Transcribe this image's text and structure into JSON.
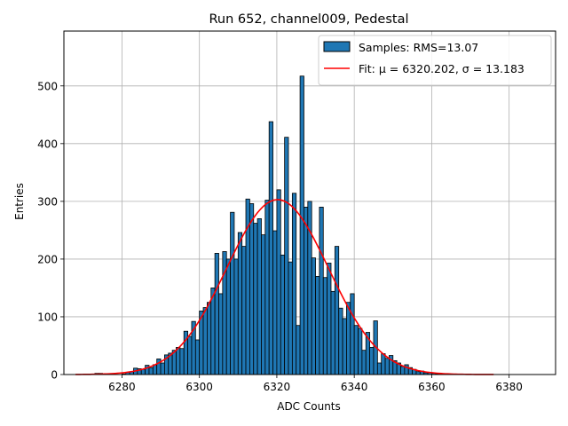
{
  "chart_data": {
    "type": "bar",
    "title": "Run 652, channel009, Pedestal",
    "xlabel": "ADC Counts",
    "ylabel": "Entries",
    "xlim": [
      6265,
      6392
    ],
    "ylim": [
      0,
      595
    ],
    "xticks": [
      6280,
      6300,
      6320,
      6340,
      6360,
      6380
    ],
    "yticks": [
      0,
      100,
      200,
      300,
      400,
      500
    ],
    "grid": true,
    "legend_position": "top-right",
    "legend": {
      "samples_label": "Samples: RMS=13.07",
      "fit_label": "Fit: μ = 6320.202, σ = 13.183"
    },
    "histogram": {
      "name": "Samples: RMS=13.07",
      "color": "#1f77b4",
      "edge_color": "#000000",
      "bin_width": 1,
      "bins": [
        [
          6273,
          2
        ],
        [
          6274,
          2
        ],
        [
          6280,
          1
        ],
        [
          6281,
          4
        ],
        [
          6282,
          5
        ],
        [
          6283,
          11
        ],
        [
          6284,
          10
        ],
        [
          6285,
          9
        ],
        [
          6286,
          16
        ],
        [
          6287,
          12
        ],
        [
          6288,
          17
        ],
        [
          6289,
          27
        ],
        [
          6290,
          20
        ],
        [
          6291,
          34
        ],
        [
          6292,
          37
        ],
        [
          6293,
          42
        ],
        [
          6294,
          47
        ],
        [
          6295,
          45
        ],
        [
          6296,
          75
        ],
        [
          6297,
          66
        ],
        [
          6298,
          92
        ],
        [
          6299,
          60
        ],
        [
          6300,
          110
        ],
        [
          6301,
          116
        ],
        [
          6302,
          125
        ],
        [
          6303,
          150
        ],
        [
          6304,
          210
        ],
        [
          6305,
          140
        ],
        [
          6306,
          213
        ],
        [
          6307,
          200
        ],
        [
          6308,
          281
        ],
        [
          6309,
          200
        ],
        [
          6310,
          246
        ],
        [
          6311,
          222
        ],
        [
          6312,
          304
        ],
        [
          6313,
          296
        ],
        [
          6314,
          262
        ],
        [
          6315,
          270
        ],
        [
          6316,
          242
        ],
        [
          6317,
          302
        ],
        [
          6318,
          438
        ],
        [
          6319,
          249
        ],
        [
          6320,
          320
        ],
        [
          6321,
          207
        ],
        [
          6322,
          411
        ],
        [
          6323,
          195
        ],
        [
          6324,
          314
        ],
        [
          6325,
          85
        ],
        [
          6326,
          517
        ],
        [
          6327,
          290
        ],
        [
          6328,
          300
        ],
        [
          6329,
          202
        ],
        [
          6330,
          170
        ],
        [
          6331,
          290
        ],
        [
          6332,
          168
        ],
        [
          6333,
          193
        ],
        [
          6334,
          144
        ],
        [
          6335,
          222
        ],
        [
          6336,
          115
        ],
        [
          6337,
          97
        ],
        [
          6338,
          125
        ],
        [
          6339,
          140
        ],
        [
          6340,
          85
        ],
        [
          6341,
          80
        ],
        [
          6342,
          42
        ],
        [
          6343,
          73
        ],
        [
          6344,
          47
        ],
        [
          6345,
          93
        ],
        [
          6346,
          20
        ],
        [
          6347,
          36
        ],
        [
          6348,
          28
        ],
        [
          6349,
          33
        ],
        [
          6350,
          24
        ],
        [
          6351,
          20
        ],
        [
          6352,
          14
        ],
        [
          6353,
          17
        ],
        [
          6354,
          12
        ],
        [
          6355,
          9
        ],
        [
          6356,
          5
        ],
        [
          6357,
          6
        ],
        [
          6358,
          3
        ],
        [
          6359,
          3
        ],
        [
          6360,
          2
        ],
        [
          6361,
          1
        ],
        [
          6363,
          1
        ],
        [
          6364,
          1
        ]
      ]
    },
    "fit": {
      "name": "Fit: μ = 6320.202, σ = 13.183",
      "color": "#ff0000",
      "mu": 6320.202,
      "sigma": 13.183,
      "amplitude": 303,
      "x_range": [
        6268,
        6376
      ]
    }
  }
}
